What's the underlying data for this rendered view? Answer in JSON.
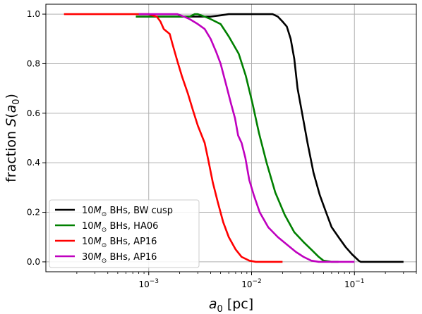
{
  "chart_data": {
    "type": "line",
    "xlabel_var": "a",
    "xlabel_sub": "0",
    "xlabel_unit": " [pc]",
    "ylabel_prefix": "fraction ",
    "ylabel_func": "S",
    "ylabel_arg_var": "a",
    "ylabel_arg_sub": "0",
    "x_scale": "log",
    "xlim": [
      0.0001,
      0.4
    ],
    "ylim": [
      -0.04,
      1.04
    ],
    "grid": true,
    "legend_position": "lower-left",
    "x_ticks": [
      {
        "value": 0.001,
        "base": "10",
        "exp": "−3"
      },
      {
        "value": 0.01,
        "base": "10",
        "exp": "−2"
      },
      {
        "value": 0.1,
        "base": "10",
        "exp": "−1"
      }
    ],
    "y_ticks": [
      {
        "value": 0.0,
        "label": "0.0"
      },
      {
        "value": 0.2,
        "label": "0.2"
      },
      {
        "value": 0.4,
        "label": "0.4"
      },
      {
        "value": 0.6,
        "label": "0.6"
      },
      {
        "value": 0.8,
        "label": "0.8"
      },
      {
        "value": 1.0,
        "label": "1.0"
      }
    ],
    "series": [
      {
        "name": "BW cusp",
        "legend_mass": "10",
        "legend_rest": " BHs, BW cusp",
        "color": "#000000",
        "points": [
          [
            0.00075,
            0.99
          ],
          [
            0.0011,
            0.99
          ],
          [
            0.0016,
            0.99
          ],
          [
            0.002,
            0.99
          ],
          [
            0.0025,
            0.99
          ],
          [
            0.003,
            0.99
          ],
          [
            0.004,
            0.99
          ],
          [
            0.005,
            0.995
          ],
          [
            0.006,
            1.0
          ],
          [
            0.008,
            1.0
          ],
          [
            0.01,
            1.0
          ],
          [
            0.013,
            1.0
          ],
          [
            0.016,
            1.0
          ],
          [
            0.018,
            0.99
          ],
          [
            0.02,
            0.97
          ],
          [
            0.022,
            0.95
          ],
          [
            0.024,
            0.9
          ],
          [
            0.026,
            0.82
          ],
          [
            0.028,
            0.7
          ],
          [
            0.031,
            0.6
          ],
          [
            0.035,
            0.48
          ],
          [
            0.04,
            0.36
          ],
          [
            0.046,
            0.27
          ],
          [
            0.053,
            0.2
          ],
          [
            0.06,
            0.14
          ],
          [
            0.07,
            0.1
          ],
          [
            0.082,
            0.06
          ],
          [
            0.095,
            0.03
          ],
          [
            0.11,
            0.005
          ],
          [
            0.115,
            0.0
          ],
          [
            0.2,
            0.0
          ],
          [
            0.3,
            0.0
          ]
        ]
      },
      {
        "name": "HA06",
        "legend_mass": "10",
        "legend_rest": " BHs, HA06",
        "color": "#008000",
        "points": [
          [
            0.00075,
            0.99
          ],
          [
            0.001,
            0.99
          ],
          [
            0.0015,
            0.99
          ],
          [
            0.002,
            0.99
          ],
          [
            0.0025,
            0.99
          ],
          [
            0.0028,
            1.0
          ],
          [
            0.003,
            1.0
          ],
          [
            0.0035,
            0.99
          ],
          [
            0.004,
            0.98
          ],
          [
            0.005,
            0.96
          ],
          [
            0.006,
            0.91
          ],
          [
            0.0075,
            0.84
          ],
          [
            0.0088,
            0.75
          ],
          [
            0.0102,
            0.64
          ],
          [
            0.0118,
            0.52
          ],
          [
            0.014,
            0.4
          ],
          [
            0.017,
            0.28
          ],
          [
            0.021,
            0.19
          ],
          [
            0.026,
            0.12
          ],
          [
            0.032,
            0.08
          ],
          [
            0.038,
            0.05
          ],
          [
            0.045,
            0.02
          ],
          [
            0.05,
            0.005
          ],
          [
            0.06,
            0.0
          ],
          [
            0.07,
            0.0
          ]
        ]
      },
      {
        "name": "AP16 10",
        "legend_mass": "10",
        "legend_rest": " BHs, AP16",
        "color": "#ff0000",
        "points": [
          [
            0.00015,
            1.0
          ],
          [
            0.0003,
            1.0
          ],
          [
            0.0005,
            1.0
          ],
          [
            0.0008,
            1.0
          ],
          [
            0.001,
            1.0
          ],
          [
            0.0012,
            0.99
          ],
          [
            0.0013,
            0.97
          ],
          [
            0.0014,
            0.94
          ],
          [
            0.0016,
            0.92
          ],
          [
            0.0017,
            0.88
          ],
          [
            0.0019,
            0.81
          ],
          [
            0.0021,
            0.75
          ],
          [
            0.0024,
            0.68
          ],
          [
            0.0027,
            0.61
          ],
          [
            0.003,
            0.55
          ],
          [
            0.0035,
            0.48
          ],
          [
            0.0038,
            0.41
          ],
          [
            0.0042,
            0.32
          ],
          [
            0.0047,
            0.24
          ],
          [
            0.0053,
            0.16
          ],
          [
            0.006,
            0.1
          ],
          [
            0.007,
            0.05
          ],
          [
            0.008,
            0.02
          ],
          [
            0.0095,
            0.005
          ],
          [
            0.011,
            0.0
          ],
          [
            0.015,
            0.0
          ],
          [
            0.02,
            0.0
          ]
        ]
      },
      {
        "name": "AP16 30",
        "legend_mass": "30",
        "legend_rest": " BHs, AP16",
        "color": "#bf00bf",
        "points": [
          [
            0.0008,
            1.0
          ],
          [
            0.001,
            1.0
          ],
          [
            0.0015,
            1.0
          ],
          [
            0.0019,
            1.0
          ],
          [
            0.0022,
            0.99
          ],
          [
            0.0025,
            0.98
          ],
          [
            0.003,
            0.96
          ],
          [
            0.0035,
            0.94
          ],
          [
            0.004,
            0.9
          ],
          [
            0.0045,
            0.85
          ],
          [
            0.005,
            0.8
          ],
          [
            0.0057,
            0.71
          ],
          [
            0.0063,
            0.64
          ],
          [
            0.0069,
            0.58
          ],
          [
            0.0074,
            0.51
          ],
          [
            0.008,
            0.48
          ],
          [
            0.0087,
            0.42
          ],
          [
            0.0095,
            0.33
          ],
          [
            0.0105,
            0.27
          ],
          [
            0.012,
            0.2
          ],
          [
            0.0145,
            0.14
          ],
          [
            0.018,
            0.1
          ],
          [
            0.022,
            0.07
          ],
          [
            0.027,
            0.04
          ],
          [
            0.032,
            0.02
          ],
          [
            0.038,
            0.005
          ],
          [
            0.045,
            0.0
          ],
          [
            0.06,
            0.0
          ],
          [
            0.1,
            0.0
          ]
        ]
      }
    ]
  }
}
